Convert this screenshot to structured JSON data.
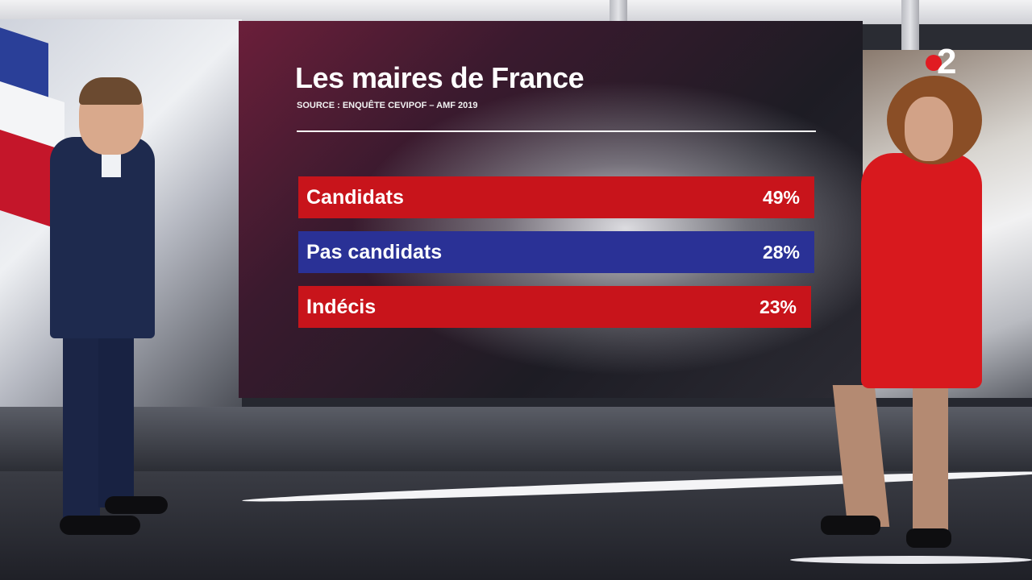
{
  "graphic": {
    "title": "Les maires de France",
    "source": "SOURCE : ENQUÊTE CEVIPOF – AMF 2019"
  },
  "channel_logo": {
    "icon": "france-2-logo",
    "text": "2"
  },
  "chart_data": {
    "type": "bar",
    "title": "Les maires de France",
    "subtitle": "SOURCE : ENQUÊTE CEVIPOF – AMF 2019",
    "categories": [
      "Candidats",
      "Pas candidats",
      "Indécis"
    ],
    "values": [
      49,
      28,
      23
    ],
    "value_labels": [
      "49%",
      "28%",
      "23%"
    ],
    "colors": [
      "#c8141b",
      "#2a3196",
      "#c8141b"
    ],
    "orientation": "horizontal",
    "xlabel": "",
    "ylabel": "",
    "grid": false,
    "legend": "none"
  }
}
